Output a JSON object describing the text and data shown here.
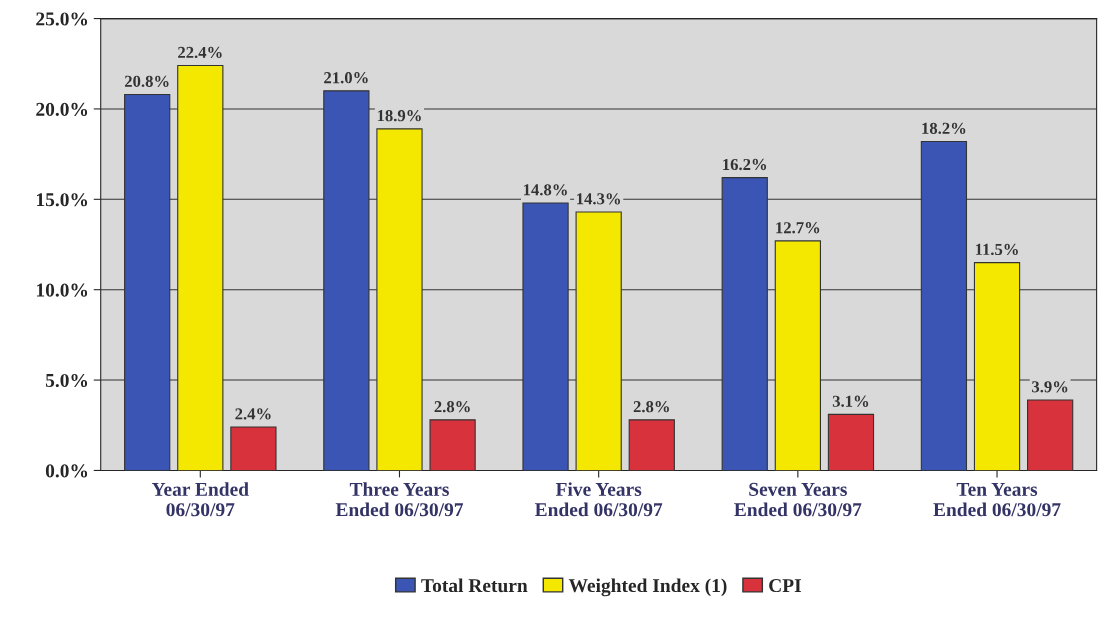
{
  "chart_data": {
    "type": "bar",
    "categories": [
      "Year Ended\n06/30/97",
      "Three Years\nEnded 06/30/97",
      "Five Years\nEnded 06/30/97",
      "Seven Years\nEnded 06/30/97",
      "Ten Years\nEnded 06/30/97"
    ],
    "series": [
      {
        "name": "Total Return",
        "color": "#3a55b4",
        "values": [
          20.8,
          21.0,
          14.8,
          16.2,
          18.2
        ],
        "value_labels": [
          "20.8%",
          "21.0%",
          "14.8%",
          "16.2%",
          "18.2%"
        ]
      },
      {
        "name": "Weighted Index (1)",
        "color": "#f4e800",
        "values": [
          22.4,
          18.9,
          14.3,
          12.7,
          11.5
        ],
        "value_labels": [
          "22.4%",
          "18.9%",
          "14.3%",
          "12.7%",
          "11.5%"
        ]
      },
      {
        "name": "CPI",
        "color": "#d8323c",
        "values": [
          2.4,
          2.8,
          2.8,
          3.1,
          3.9
        ],
        "value_labels": [
          "2.4%",
          "2.8%",
          "2.8%",
          "3.1%",
          "3.9%"
        ]
      }
    ],
    "ylim": [
      0,
      25
    ],
    "yticks": [
      {
        "value": 0,
        "label": "0.0%"
      },
      {
        "value": 5,
        "label": "5.0%"
      },
      {
        "value": 10,
        "label": "10.0%"
      },
      {
        "value": 15,
        "label": "15.0%"
      },
      {
        "value": 20,
        "label": "20.0%"
      },
      {
        "value": 25,
        "label": "25.0%"
      }
    ],
    "grid": "y",
    "legend": "bottom"
  }
}
